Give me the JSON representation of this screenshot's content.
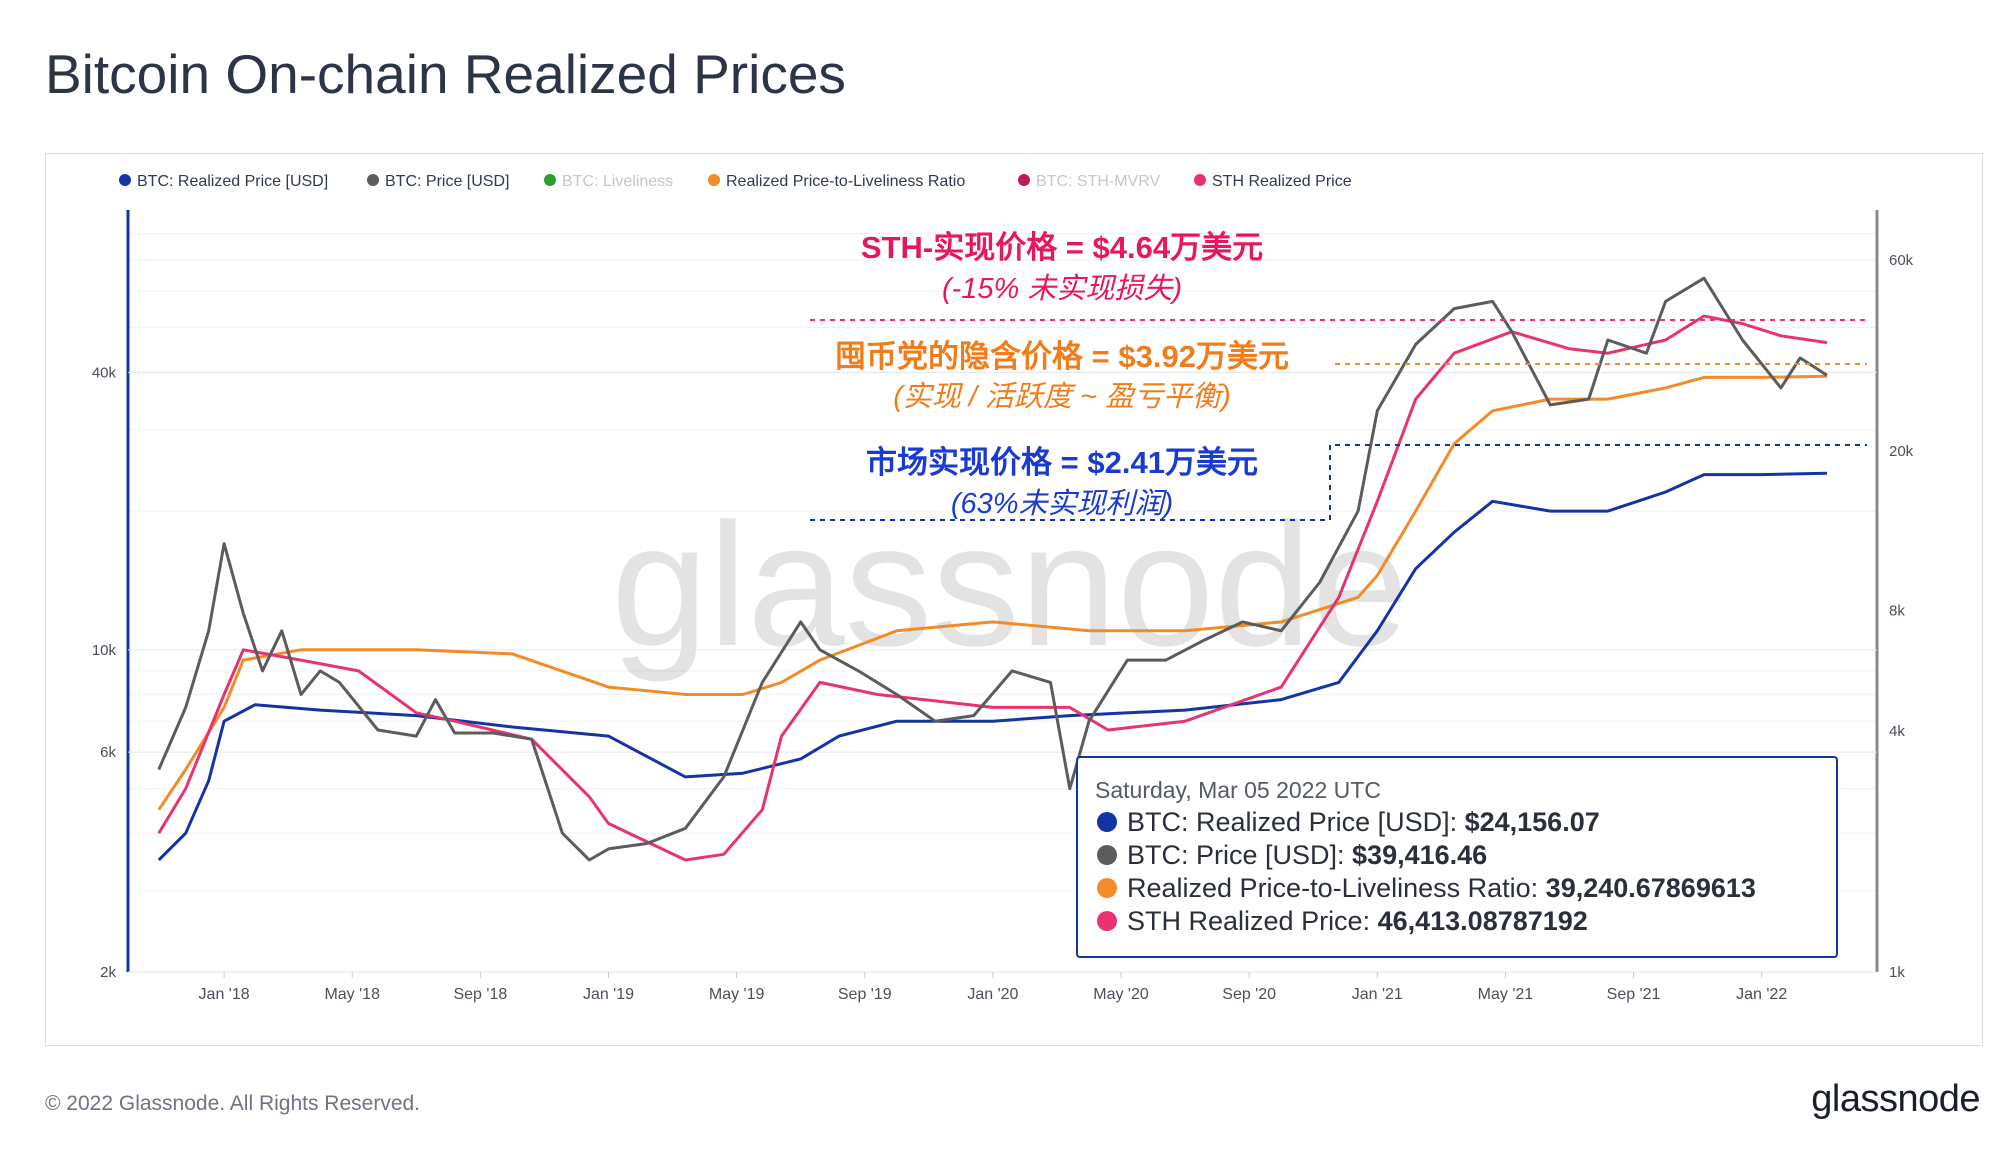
{
  "page": {
    "title": "Bitcoin On-chain Realized Prices",
    "copyright": "© 2022 Glassnode. All Rights Reserved.",
    "brand": "glassnode",
    "watermark": "glassnode"
  },
  "colors": {
    "realized": "#1434a4",
    "price": "#5c5c5c",
    "liveliness": "#2ca02c",
    "ratio": "#f28c28",
    "sth_mvrv": "#c2185b",
    "sth_realized": "#e8336e"
  },
  "chart_data": {
    "type": "line",
    "x_ticks": [
      "Jan '18",
      "May '18",
      "Sep '18",
      "Jan '19",
      "May '19",
      "Sep '19",
      "Jan '20",
      "May '20",
      "Sep '20",
      "Jan '21",
      "May '21",
      "Sep '21",
      "Jan '22"
    ],
    "y_left": {
      "scale": "log",
      "ticks": [
        "2k",
        "6k",
        "10k",
        "40k"
      ],
      "range": [
        2000,
        90000
      ]
    },
    "y_right": {
      "scale": "log",
      "ticks": [
        "1k",
        "4k",
        "8k",
        "20k",
        "60k"
      ],
      "range": [
        1000,
        80000
      ]
    },
    "legend": [
      {
        "label": "BTC: Realized Price [USD]",
        "color": "#1434a4",
        "enabled": true
      },
      {
        "label": "BTC: Price [USD]",
        "color": "#5c5c5c",
        "enabled": true
      },
      {
        "label": "BTC: Liveliness",
        "color": "#2ca02c",
        "enabled": false
      },
      {
        "label": "Realized Price-to-Liveliness Ratio",
        "color": "#f28c28",
        "enabled": true
      },
      {
        "label": "BTC: STH-MVRV",
        "color": "#c2185b",
        "enabled": false
      },
      {
        "label": "STH Realized Price",
        "color": "#e8336e",
        "enabled": true
      }
    ],
    "series": [
      {
        "name": "BTC: Realized Price [USD]",
        "x": [
          2017.83,
          2017.9,
          2017.96,
          2018.0,
          2018.08,
          2018.25,
          2018.5,
          2018.75,
          2019.0,
          2019.2,
          2019.35,
          2019.5,
          2019.6,
          2019.75,
          2020.0,
          2020.2,
          2020.5,
          2020.75,
          2020.9,
          2021.0,
          2021.1,
          2021.2,
          2021.3,
          2021.45,
          2021.6,
          2021.75,
          2021.85,
          2022.0,
          2022.17
        ],
        "values": [
          3500,
          4000,
          5200,
          7000,
          7600,
          7400,
          7200,
          6800,
          6500,
          5300,
          5400,
          5800,
          6500,
          7000,
          7000,
          7200,
          7400,
          7800,
          8500,
          11000,
          15000,
          18000,
          21000,
          20000,
          20000,
          22000,
          24000,
          24000,
          24156
        ]
      },
      {
        "name": "BTC: Price [USD]",
        "x": [
          2017.83,
          2017.9,
          2017.96,
          2018.0,
          2018.05,
          2018.1,
          2018.15,
          2018.2,
          2018.25,
          2018.3,
          2018.4,
          2018.5,
          2018.55,
          2018.6,
          2018.7,
          2018.8,
          2018.88,
          2018.95,
          2019.0,
          2019.1,
          2019.2,
          2019.3,
          2019.4,
          2019.5,
          2019.55,
          2019.65,
          2019.75,
          2019.85,
          2019.95,
          2020.05,
          2020.15,
          2020.2,
          2020.25,
          2020.35,
          2020.45,
          2020.55,
          2020.65,
          2020.75,
          2020.85,
          2020.95,
          2021.0,
          2021.1,
          2021.2,
          2021.3,
          2021.35,
          2021.45,
          2021.55,
          2021.6,
          2021.7,
          2021.75,
          2021.85,
          2021.95,
          2022.05,
          2022.1,
          2022.17
        ],
        "values": [
          5500,
          7500,
          11000,
          17000,
          12000,
          9000,
          11000,
          8000,
          9000,
          8500,
          6700,
          6500,
          7800,
          6600,
          6600,
          6400,
          4000,
          3500,
          3700,
          3800,
          4100,
          5300,
          8500,
          11500,
          10000,
          9000,
          8000,
          7000,
          7200,
          9000,
          8500,
          5000,
          7000,
          9500,
          9500,
          10500,
          11500,
          11000,
          14000,
          20000,
          33000,
          46000,
          55000,
          57000,
          49000,
          34000,
          35000,
          47000,
          44000,
          57000,
          64000,
          47000,
          37000,
          43000,
          39416
        ]
      },
      {
        "name": "Realized Price-to-Liveliness Ratio",
        "x": [
          2017.83,
          2017.9,
          2018.0,
          2018.05,
          2018.2,
          2018.5,
          2018.75,
          2019.0,
          2019.2,
          2019.35,
          2019.45,
          2019.55,
          2019.75,
          2020.0,
          2020.25,
          2020.5,
          2020.75,
          2020.95,
          2021.0,
          2021.1,
          2021.2,
          2021.3,
          2021.45,
          2021.6,
          2021.75,
          2021.85,
          2022.0,
          2022.17
        ],
        "values": [
          4500,
          5500,
          7500,
          9500,
          10000,
          10000,
          9800,
          8300,
          8000,
          8000,
          8500,
          9500,
          11000,
          11500,
          11000,
          11000,
          11500,
          13000,
          14500,
          20000,
          28000,
          33000,
          35000,
          35000,
          37000,
          39000,
          39000,
          39240
        ]
      },
      {
        "name": "STH Realized Price",
        "x": [
          2017.83,
          2017.9,
          2018.0,
          2018.05,
          2018.2,
          2018.35,
          2018.5,
          2018.6,
          2018.8,
          2018.95,
          2019.0,
          2019.2,
          2019.3,
          2019.4,
          2019.45,
          2019.55,
          2019.7,
          2020.0,
          2020.2,
          2020.3,
          2020.5,
          2020.75,
          2020.9,
          2021.0,
          2021.1,
          2021.2,
          2021.35,
          2021.5,
          2021.6,
          2021.75,
          2021.85,
          2021.95,
          2022.05,
          2022.17
        ],
        "values": [
          4000,
          5000,
          8000,
          10000,
          9500,
          9000,
          7300,
          7000,
          6400,
          4800,
          4200,
          3500,
          3600,
          4500,
          6500,
          8500,
          8000,
          7500,
          7500,
          6700,
          7000,
          8300,
          13000,
          21000,
          35000,
          44000,
          49000,
          45000,
          44000,
          47000,
          53000,
          51000,
          48000,
          46413
        ]
      }
    ]
  },
  "annotations": {
    "sth_line1": "STH-实现价格 = $4.64万美元",
    "sth_line2": "(-15% 未实现损失)",
    "hodler_line1": "囤币党的隐含价格 = $3.92万美元",
    "hodler_line2": "(实现 / 活跃度 ~ 盈亏平衡)",
    "market_line1": "市场实现价格 = $2.41万美元",
    "market_line2": "(63%未实现利润)"
  },
  "tooltip": {
    "date": "Saturday, Mar 05 2022 UTC",
    "rows": [
      {
        "label": "BTC: Realized Price [USD]: ",
        "value": "$24,156.07",
        "color": "#1434a4"
      },
      {
        "label": "BTC: Price [USD]: ",
        "value": "$39,416.46",
        "color": "#5c5c5c"
      },
      {
        "label": "Realized Price-to-Liveliness Ratio: ",
        "value": "39,240.67869613",
        "color": "#f28c28"
      },
      {
        "label": "STH Realized Price: ",
        "value": "46,413.08787192",
        "color": "#e8336e"
      }
    ]
  }
}
